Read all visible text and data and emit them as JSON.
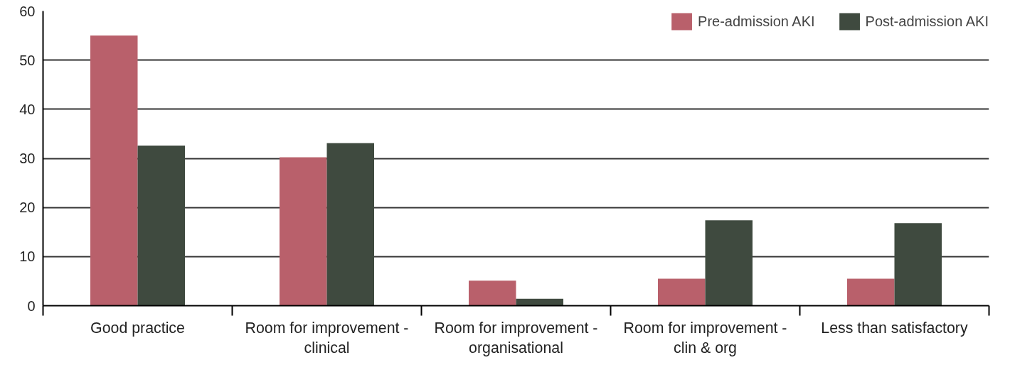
{
  "chart_data": {
    "type": "bar",
    "categories": [
      "Good practice",
      "Room for improvement - clinical",
      "Room for improvement - organisational",
      "Room for improvement - clin & org",
      "Less than satisfactory"
    ],
    "series": [
      {
        "name": "Pre-admission AKI",
        "color": "#b9606b",
        "values": [
          55,
          30.2,
          5.1,
          5.5,
          5.5
        ]
      },
      {
        "name": "Post-admission AKI",
        "color": "#3f4a3f",
        "values": [
          32.6,
          33.1,
          1.4,
          17.4,
          16.8
        ]
      }
    ],
    "ylim": [
      0,
      60
    ],
    "yticks": [
      0,
      10,
      20,
      30,
      40,
      50,
      60
    ],
    "grid": "y",
    "legend": "top right"
  }
}
